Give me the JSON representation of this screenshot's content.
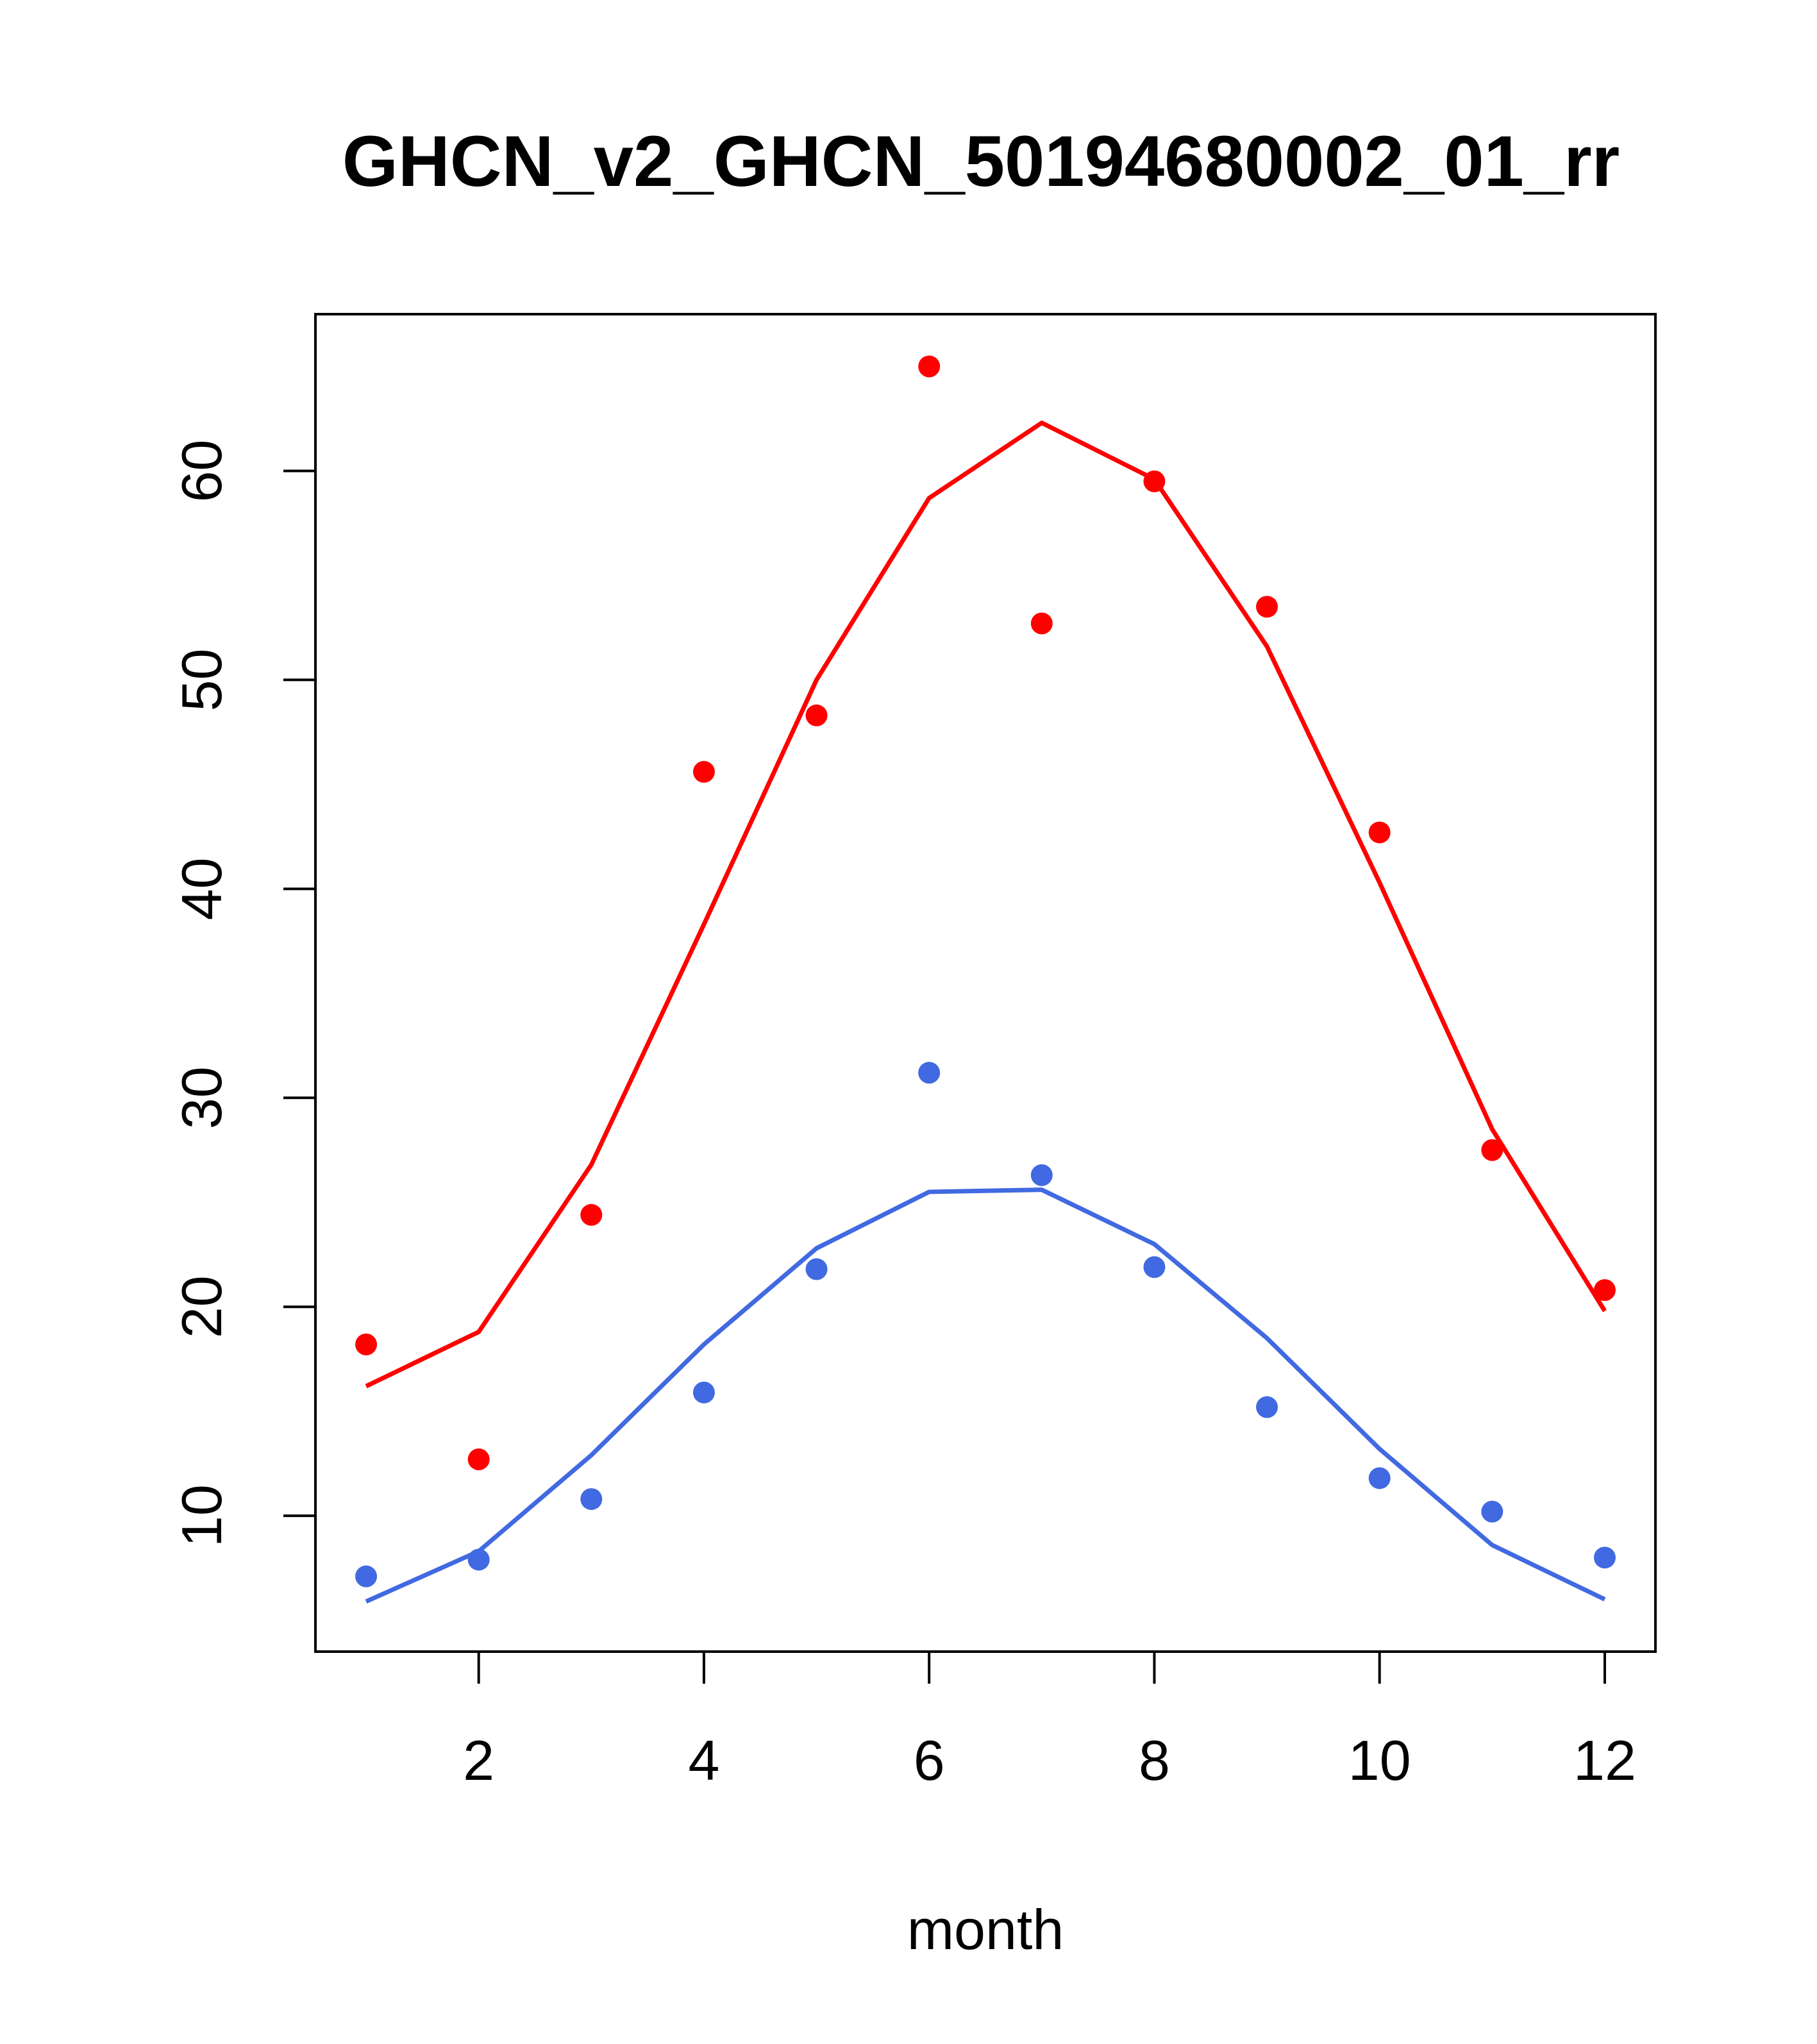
{
  "chart_data": {
    "type": "line",
    "title": "GHCN_v2_GHCN_50194680002_01_rr",
    "xlabel": "month",
    "ylabel": "",
    "xlim": [
      0.55,
      12.45
    ],
    "ylim": [
      3.5,
      67.5
    ],
    "x_ticks": [
      2,
      4,
      6,
      8,
      10,
      12
    ],
    "y_ticks": [
      10,
      20,
      30,
      40,
      50,
      60
    ],
    "grid": false,
    "legend": "none",
    "x": [
      1,
      2,
      3,
      4,
      5,
      6,
      7,
      8,
      9,
      10,
      11,
      12
    ],
    "series": [
      {
        "color": "#ff0000",
        "points": [
          18.2,
          12.7,
          24.4,
          45.6,
          48.3,
          65.0,
          52.7,
          59.5,
          53.5,
          42.7,
          27.5,
          20.8
        ],
        "line": [
          16.2,
          18.8,
          26.8,
          38.3,
          50.0,
          58.7,
          62.3,
          59.6,
          51.6,
          40.3,
          28.5,
          19.8
        ]
      },
      {
        "color": "#4169e1",
        "points": [
          7.1,
          7.9,
          10.8,
          15.9,
          21.8,
          31.2,
          26.3,
          21.9,
          15.2,
          11.8,
          10.2,
          8.0
        ],
        "line": [
          5.9,
          8.3,
          12.9,
          18.2,
          22.8,
          25.5,
          25.6,
          23.0,
          18.5,
          13.2,
          8.6,
          6.0
        ]
      }
    ]
  }
}
